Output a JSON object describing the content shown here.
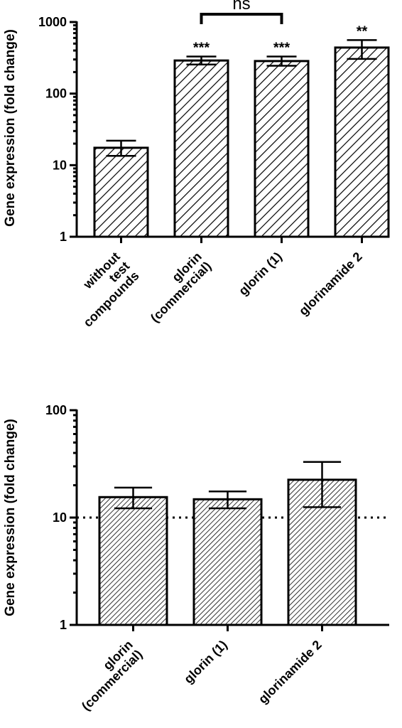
{
  "chart_data": [
    {
      "type": "bar",
      "scale": "log",
      "ylabel": "Gene expression (fold change)",
      "ylim": [
        1,
        1000
      ],
      "yticks": [
        "1",
        "10",
        "100",
        "1000"
      ],
      "categories": [
        [
          "without",
          "test",
          "compounds"
        ],
        [
          "glorin",
          "(commercial)"
        ],
        [
          "glorin (1)"
        ],
        [
          "glorinamide 2"
        ]
      ],
      "values": [
        17.5,
        290,
        285,
        440
      ],
      "error_low": [
        13.5,
        255,
        245,
        305
      ],
      "error_high": [
        22,
        330,
        330,
        560
      ],
      "significance": [
        "",
        "***",
        "***",
        "**"
      ],
      "comparisons": [
        {
          "from": 1,
          "to": 2,
          "label": "ns"
        }
      ],
      "pattern": "hatched"
    },
    {
      "type": "bar",
      "scale": "log",
      "ylabel": "Gene expression (fold change)",
      "ylim": [
        1,
        100
      ],
      "yticks": [
        "1",
        "10",
        "100"
      ],
      "categories": [
        [
          "glorin",
          "(commercial)"
        ],
        [
          "glorin (1)"
        ],
        [
          "glorinamide 2"
        ]
      ],
      "values": [
        15.5,
        14.8,
        22.5
      ],
      "error_low": [
        12.2,
        12.2,
        12.5
      ],
      "error_high": [
        19,
        17.5,
        33
      ],
      "reference_line": 10,
      "pattern": "hatched"
    }
  ]
}
